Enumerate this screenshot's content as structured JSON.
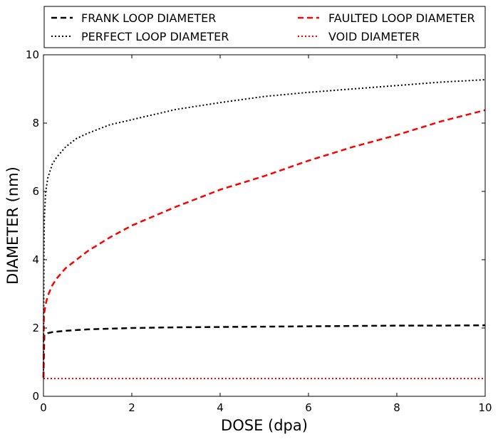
{
  "chart_data": {
    "type": "line",
    "title": "",
    "xlabel": "DOSE (dpa)",
    "ylabel": "DIAMETER (nm)",
    "xlim": [
      0,
      10
    ],
    "ylim": [
      0,
      10
    ],
    "x_ticks": [
      0,
      2,
      4,
      6,
      8,
      10
    ],
    "y_ticks": [
      0,
      2,
      4,
      6,
      8,
      10
    ],
    "x_tick_labels": [
      "0",
      "2",
      "4",
      "6",
      "8",
      "10"
    ],
    "y_tick_labels": [
      "0",
      "2",
      "4",
      "6",
      "8",
      "10"
    ],
    "grid": false,
    "legend_position": "top, outside plot, two columns",
    "series": [
      {
        "name": "FRANK LOOP DIAMETER",
        "color": "#000000",
        "style": "dashed",
        "x": [
          0,
          0.02,
          0.05,
          0.1,
          0.2,
          0.5,
          1,
          2,
          3,
          4,
          5,
          6,
          7,
          8,
          9,
          10
        ],
        "y": [
          0.55,
          1.8,
          1.83,
          1.85,
          1.88,
          1.92,
          1.96,
          2.0,
          2.02,
          2.03,
          2.04,
          2.05,
          2.06,
          2.07,
          2.07,
          2.08
        ]
      },
      {
        "name": "PERFECT LOOP DIAMETER",
        "color": "#000000",
        "style": "dotted",
        "x": [
          0,
          0.01,
          0.02,
          0.05,
          0.1,
          0.2,
          0.3,
          0.5,
          0.75,
          1,
          1.5,
          2,
          3,
          4,
          5,
          6,
          7,
          8,
          9,
          10
        ],
        "y": [
          0.55,
          4.2,
          5.2,
          6.0,
          6.4,
          6.8,
          7.0,
          7.3,
          7.55,
          7.7,
          7.95,
          8.1,
          8.4,
          8.6,
          8.78,
          8.9,
          9.0,
          9.1,
          9.2,
          9.27
        ]
      },
      {
        "name": "FAULTED LOOP DIAMETER",
        "color": "#ff0000",
        "style": "dashed",
        "x": [
          0,
          0.01,
          0.02,
          0.05,
          0.1,
          0.2,
          0.3,
          0.5,
          0.75,
          1,
          1.5,
          2,
          3,
          4,
          5,
          6,
          7,
          8,
          9,
          10
        ],
        "y": [
          0.55,
          2.3,
          2.45,
          2.7,
          2.95,
          3.25,
          3.45,
          3.75,
          4.0,
          4.25,
          4.65,
          5.0,
          5.55,
          6.05,
          6.45,
          6.9,
          7.3,
          7.65,
          8.05,
          8.38
        ]
      },
      {
        "name": "VOID DIAMETER",
        "color": "#ff0000",
        "style": "dotted",
        "x": [
          0,
          10
        ],
        "y": [
          0.52,
          0.52
        ]
      }
    ]
  }
}
